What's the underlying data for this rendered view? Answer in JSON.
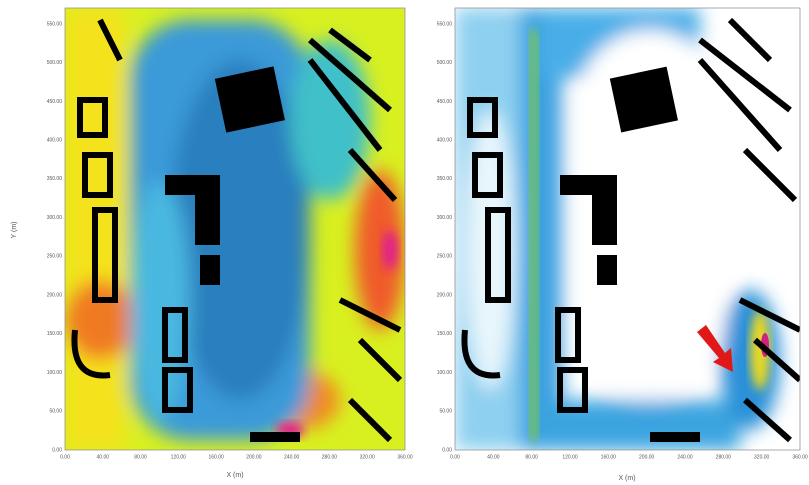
{
  "panels": [
    {
      "x_label": "X (m)",
      "y_label": "Y (m)",
      "xticks": [
        "0.00",
        "40.00",
        "80.00",
        "120.00",
        "160.00",
        "200.00",
        "240.00",
        "280.00",
        "320.00",
        "360.00"
      ],
      "yticks": [
        "0.00",
        "50.00",
        "100.00",
        "150.00",
        "200.00",
        "250.00",
        "300.00",
        "350.00",
        "400.00",
        "450.00",
        "500.00",
        "550.00"
      ]
    },
    {
      "x_label": "X (m)",
      "xticks": [
        "0.00",
        "40.00",
        "80.00",
        "120.00",
        "160.00",
        "200.00",
        "240.00",
        "280.00",
        "320.00",
        "360.00"
      ],
      "yticks": [
        "0.00",
        "50.00",
        "100.00",
        "150.00",
        "200.00",
        "250.00",
        "300.00",
        "350.00",
        "400.00",
        "450.00",
        "500.00",
        "550.00"
      ]
    }
  ]
}
